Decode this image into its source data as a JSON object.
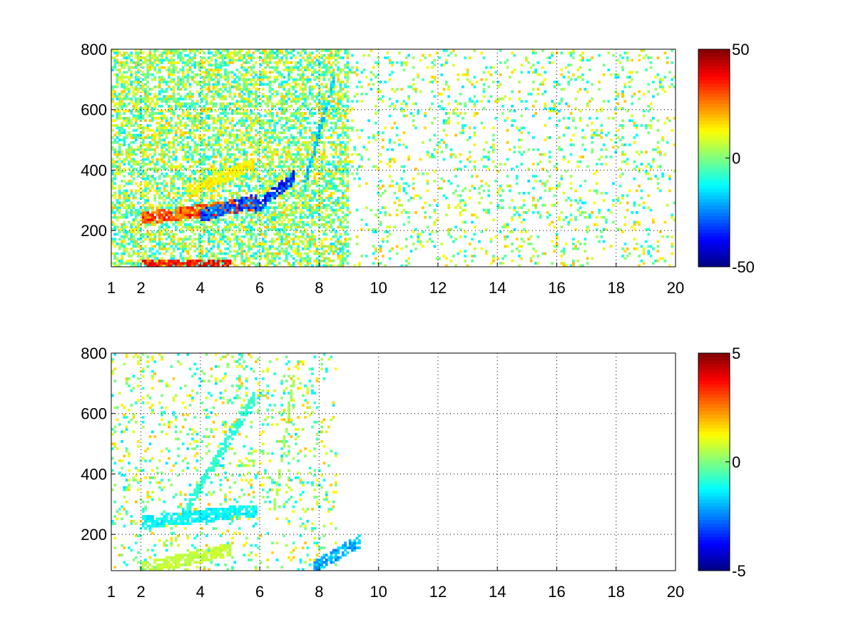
{
  "chart_data": [
    {
      "type": "heatmap",
      "title": "",
      "xlabel": "",
      "ylabel": "",
      "x_scale": "linear",
      "xlim": [
        1,
        20
      ],
      "ylim": [
        80,
        800
      ],
      "xticks": [
        1,
        2,
        4,
        6,
        8,
        10,
        12,
        14,
        16,
        18,
        20
      ],
      "yticks": [
        200,
        400,
        600,
        800
      ],
      "grid": true,
      "colormap": "jet",
      "clim": [
        -50,
        50
      ],
      "colorbar_ticks": [
        -50,
        0,
        50
      ],
      "features": [
        {
          "x": [
            2.0,
            5.9
          ],
          "y_start": 240,
          "y_end": 290,
          "value": 35
        },
        {
          "x": [
            4.0,
            5.9
          ],
          "y_start": 250,
          "y_end": 300,
          "value": -35
        },
        {
          "x": [
            5.8,
            7.2
          ],
          "y_start": 270,
          "y_end": 380,
          "value": -40
        },
        {
          "x": [
            2.0,
            5.0
          ],
          "y_start": 85,
          "y_end": 85,
          "value": 40
        },
        {
          "x": [
            3.5,
            5.8
          ],
          "y_start": 330,
          "y_end": 420,
          "value": 15
        },
        {
          "x": [
            7.5,
            8.5
          ],
          "y_start": 350,
          "y_end": 700,
          "value": -20
        }
      ]
    },
    {
      "type": "heatmap",
      "title": "",
      "xlabel": "",
      "ylabel": "",
      "x_scale": "linear",
      "xlim": [
        1,
        20
      ],
      "ylim": [
        80,
        800
      ],
      "xticks": [
        1,
        2,
        4,
        6,
        8,
        10,
        12,
        14,
        16,
        18,
        20
      ],
      "yticks": [
        200,
        400,
        600,
        800
      ],
      "grid": true,
      "colormap": "jet",
      "clim": [
        -5,
        5
      ],
      "colorbar_ticks": [
        -5,
        0,
        5
      ],
      "features": [
        {
          "x": [
            2.0,
            5.9
          ],
          "y_start": 240,
          "y_end": 280,
          "value": -1.5
        },
        {
          "x": [
            3.5,
            5.8
          ],
          "y_start": 280,
          "y_end": 650,
          "value": -1.0
        },
        {
          "x": [
            6.5,
            7.2
          ],
          "y_start": 300,
          "y_end": 750,
          "value": 0.5
        },
        {
          "x": [
            2.0,
            5.0
          ],
          "y_start": 85,
          "y_end": 150,
          "value": 0.8
        },
        {
          "x": [
            7.8,
            9.4
          ],
          "y_start": 90,
          "y_end": 180,
          "value": -2.5
        }
      ]
    }
  ]
}
